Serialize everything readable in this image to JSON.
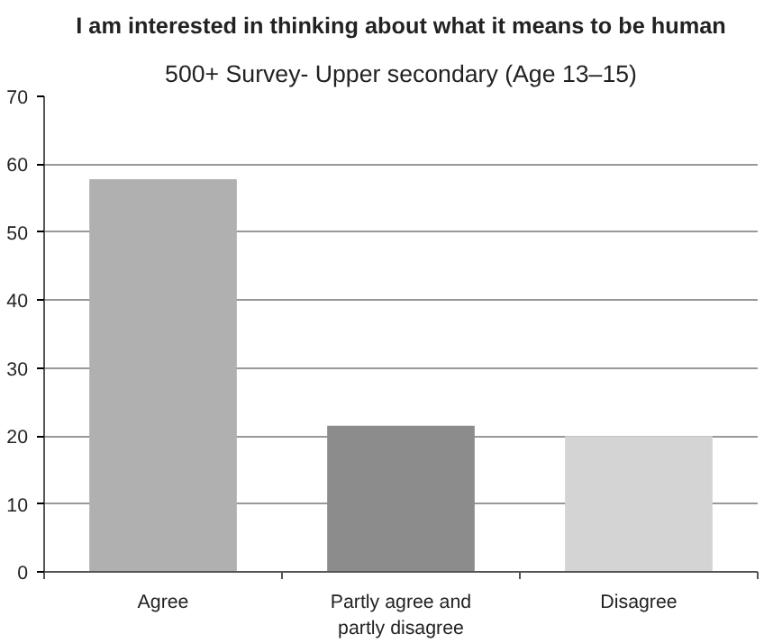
{
  "chart_data": {
    "type": "bar",
    "title": "I am interested in thinking about what it means to be human",
    "subtitle": "500+ Survey- Upper secondary (Age 13–15)",
    "categories": [
      "Agree",
      "Partly agree and partly disagree",
      "Disagree"
    ],
    "values": [
      57.8,
      21.5,
      20
    ],
    "colors": [
      "#b0b0b0",
      "#8c8c8c",
      "#d4d4d4"
    ],
    "ylim": [
      0,
      70
    ],
    "yticks": [
      0,
      10,
      20,
      30,
      40,
      50,
      60,
      70
    ],
    "grid": "y"
  }
}
